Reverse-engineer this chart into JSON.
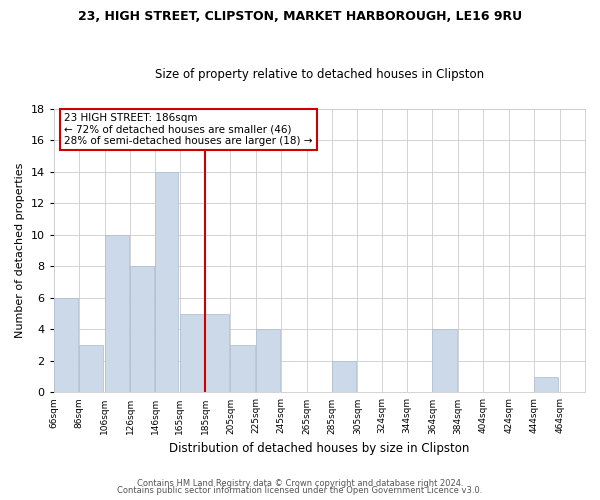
{
  "title1": "23, HIGH STREET, CLIPSTON, MARKET HARBOROUGH, LE16 9RU",
  "title2": "Size of property relative to detached houses in Clipston",
  "xlabel": "Distribution of detached houses by size in Clipston",
  "ylabel": "Number of detached properties",
  "bar_color": "#ccd9e8",
  "bins": [
    "66sqm",
    "86sqm",
    "106sqm",
    "126sqm",
    "146sqm",
    "165sqm",
    "185sqm",
    "205sqm",
    "225sqm",
    "245sqm",
    "265sqm",
    "285sqm",
    "305sqm",
    "324sqm",
    "344sqm",
    "364sqm",
    "384sqm",
    "404sqm",
    "424sqm",
    "444sqm",
    "464sqm"
  ],
  "counts": [
    6,
    3,
    10,
    8,
    14,
    5,
    5,
    3,
    4,
    0,
    0,
    2,
    0,
    0,
    0,
    4,
    0,
    0,
    0,
    1,
    0
  ],
  "bin_edges": [
    66,
    86,
    106,
    126,
    146,
    165,
    185,
    205,
    225,
    245,
    265,
    285,
    305,
    324,
    344,
    364,
    384,
    404,
    424,
    444,
    464,
    484
  ],
  "ylim": [
    0,
    18
  ],
  "yticks": [
    0,
    2,
    4,
    6,
    8,
    10,
    12,
    14,
    16,
    18
  ],
  "annotation_title": "23 HIGH STREET: 186sqm",
  "annotation_line1": "← 72% of detached houses are smaller (46)",
  "annotation_line2": "28% of semi-detached houses are larger (18) →",
  "vline_x": 185,
  "footer_line1": "Contains HM Land Registry data © Crown copyright and database right 2024.",
  "footer_line2": "Contains public sector information licensed under the Open Government Licence v3.0.",
  "background_color": "#ffffff",
  "plot_background": "#ffffff",
  "annotation_box_color": "#ffffff",
  "annotation_box_edge": "#cc0000",
  "vline_color": "#cc0000",
  "grid_color": "#cccccc"
}
